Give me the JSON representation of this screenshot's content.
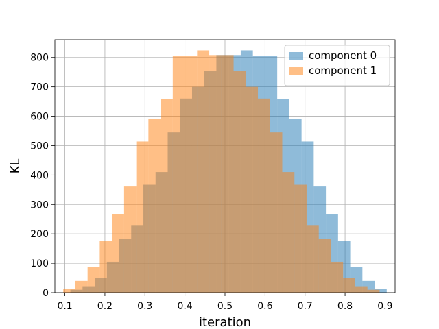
{
  "chart_data": {
    "type": "bar",
    "title": "",
    "xlabel": "iteration",
    "ylabel": "KL",
    "xlim": [
      0.075,
      0.925
    ],
    "ylim": [
      0,
      860
    ],
    "xticks": [
      0.1,
      0.2,
      0.3,
      0.4,
      0.5,
      0.6,
      0.7,
      0.8,
      0.9
    ],
    "xtick_labels": [
      "0.1",
      "0.2",
      "0.3",
      "0.4",
      "0.5",
      "0.6",
      "0.7",
      "0.8",
      "0.9"
    ],
    "yticks": [
      0,
      100,
      200,
      300,
      400,
      500,
      600,
      700,
      800
    ],
    "ytick_labels": [
      "0",
      "100",
      "200",
      "300",
      "400",
      "500",
      "600",
      "700",
      "800"
    ],
    "grid": true,
    "legend_position": "top-right",
    "series": [
      {
        "name": "component 0",
        "color": "#1f77b4",
        "opacity": 0.5,
        "bins": [
          [
            0.1137,
            0.1441,
            10
          ],
          [
            0.1441,
            0.1745,
            22
          ],
          [
            0.1745,
            0.2049,
            50
          ],
          [
            0.2049,
            0.2353,
            105
          ],
          [
            0.2353,
            0.2657,
            182
          ],
          [
            0.2657,
            0.2961,
            230
          ],
          [
            0.2961,
            0.3265,
            367
          ],
          [
            0.3265,
            0.3569,
            410
          ],
          [
            0.3569,
            0.3873,
            545
          ],
          [
            0.3873,
            0.4177,
            660
          ],
          [
            0.4177,
            0.4481,
            700
          ],
          [
            0.4481,
            0.4785,
            754
          ],
          [
            0.4785,
            0.5089,
            808
          ],
          [
            0.5089,
            0.5393,
            808
          ],
          [
            0.5393,
            0.5697,
            824
          ],
          [
            0.5697,
            0.6001,
            804
          ],
          [
            0.6001,
            0.6305,
            804
          ],
          [
            0.6305,
            0.6609,
            658
          ],
          [
            0.6609,
            0.6913,
            592
          ],
          [
            0.6913,
            0.7217,
            514
          ],
          [
            0.7217,
            0.7521,
            361
          ],
          [
            0.7521,
            0.7825,
            268
          ],
          [
            0.7825,
            0.8129,
            177
          ],
          [
            0.8129,
            0.8433,
            88
          ],
          [
            0.8433,
            0.8737,
            40
          ],
          [
            0.8737,
            0.9041,
            12
          ]
        ]
      },
      {
        "name": "component 1",
        "color": "#ff7f0e",
        "opacity": 0.5,
        "bins": [
          [
            0.0959,
            0.1263,
            12
          ],
          [
            0.1263,
            0.1567,
            40
          ],
          [
            0.1567,
            0.1871,
            88
          ],
          [
            0.1871,
            0.2175,
            177
          ],
          [
            0.2175,
            0.2479,
            268
          ],
          [
            0.2479,
            0.2783,
            361
          ],
          [
            0.2783,
            0.3087,
            514
          ],
          [
            0.3087,
            0.3391,
            592
          ],
          [
            0.3391,
            0.3695,
            658
          ],
          [
            0.3695,
            0.3999,
            804
          ],
          [
            0.3999,
            0.4303,
            804
          ],
          [
            0.4303,
            0.4607,
            824
          ],
          [
            0.4607,
            0.4911,
            808
          ],
          [
            0.4911,
            0.5215,
            808
          ],
          [
            0.5215,
            0.5519,
            754
          ],
          [
            0.5519,
            0.5823,
            700
          ],
          [
            0.5823,
            0.6127,
            660
          ],
          [
            0.6127,
            0.6431,
            545
          ],
          [
            0.6431,
            0.6735,
            410
          ],
          [
            0.6735,
            0.7039,
            367
          ],
          [
            0.7039,
            0.7343,
            230
          ],
          [
            0.7343,
            0.7647,
            182
          ],
          [
            0.7647,
            0.7951,
            105
          ],
          [
            0.7951,
            0.8255,
            50
          ],
          [
            0.8255,
            0.8559,
            22
          ],
          [
            0.8559,
            0.8863,
            10
          ]
        ]
      }
    ]
  }
}
